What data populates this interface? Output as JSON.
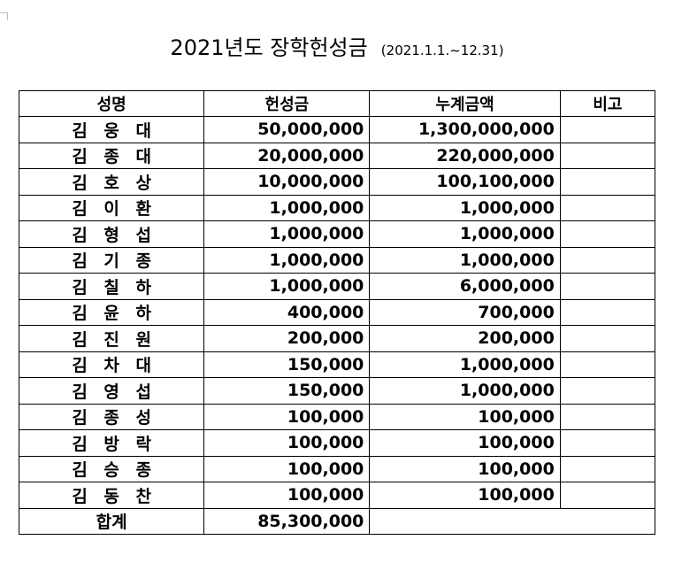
{
  "title": "2021년도 장학헌성금",
  "period": "(2021.1.1.~12.31)",
  "table": {
    "headers": {
      "name": "성명",
      "amount": "헌성금",
      "cumulative": "누계금액",
      "note": "비고"
    },
    "rows": [
      {
        "name": "김 웅 대",
        "amount": "50,000,000",
        "cumulative": "1,300,000,000",
        "note": ""
      },
      {
        "name": "김 종 대",
        "amount": "20,000,000",
        "cumulative": "220,000,000",
        "note": ""
      },
      {
        "name": "김 호 상",
        "amount": "10,000,000",
        "cumulative": "100,100,000",
        "note": ""
      },
      {
        "name": "김 이 환",
        "amount": "1,000,000",
        "cumulative": "1,000,000",
        "note": ""
      },
      {
        "name": "김 형 섭",
        "amount": "1,000,000",
        "cumulative": "1,000,000",
        "note": ""
      },
      {
        "name": "김 기 종",
        "amount": "1,000,000",
        "cumulative": "1,000,000",
        "note": ""
      },
      {
        "name": "김 칠 하",
        "amount": "1,000,000",
        "cumulative": "6,000,000",
        "note": ""
      },
      {
        "name": "김 윤 하",
        "amount": "400,000",
        "cumulative": "700,000",
        "note": ""
      },
      {
        "name": "김 진 원",
        "amount": "200,000",
        "cumulative": "200,000",
        "note": ""
      },
      {
        "name": "김 차 대",
        "amount": "150,000",
        "cumulative": "1,000,000",
        "note": ""
      },
      {
        "name": "김 영 섭",
        "amount": "150,000",
        "cumulative": "1,000,000",
        "note": ""
      },
      {
        "name": "김 종 성",
        "amount": "100,000",
        "cumulative": "100,000",
        "note": ""
      },
      {
        "name": "김 방 락",
        "amount": "100,000",
        "cumulative": "100,000",
        "note": ""
      },
      {
        "name": "김 승 종",
        "amount": "100,000",
        "cumulative": "100,000",
        "note": ""
      },
      {
        "name": "김 동 찬",
        "amount": "100,000",
        "cumulative": "100,000",
        "note": ""
      }
    ],
    "total": {
      "label": "합계",
      "amount": "85,300,000"
    }
  }
}
